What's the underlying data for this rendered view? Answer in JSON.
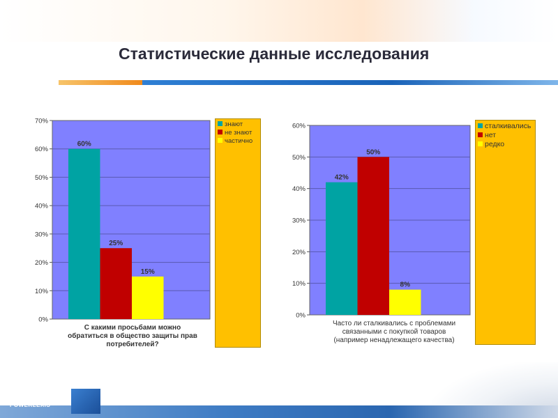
{
  "slide": {
    "title": "Статистические данные исследования",
    "brand": "POWERLEXIS"
  },
  "colors": {
    "plot_bg": "#8080ff",
    "teal": "#00a3a3",
    "red": "#c00000",
    "yellow": "#ffff00",
    "legend_bg": "#ffc000",
    "accent_orange": "#f08a1c",
    "accent_blue": "#1a63b8"
  },
  "chart_data": [
    {
      "type": "bar",
      "xlabel_lines": [
        "С какими просьбами можно",
        "обратиться в общество защиты прав",
        "потребителей?"
      ],
      "ylim": [
        0,
        70
      ],
      "yticks": [
        "0%",
        "10%",
        "20%",
        "30%",
        "40%",
        "50%",
        "60%",
        "70%"
      ],
      "ytick_values": [
        0,
        10,
        20,
        30,
        40,
        50,
        60,
        70
      ],
      "series": [
        {
          "name": "знают",
          "value": 60,
          "label": "60%",
          "color": "#00a3a3"
        },
        {
          "name": "не знают",
          "value": 25,
          "label": "25%",
          "color": "#c00000"
        },
        {
          "name": "частично",
          "value": 15,
          "label": "15%",
          "color": "#ffff00"
        }
      ],
      "legend": "right",
      "grid": true
    },
    {
      "type": "bar",
      "xlabel_lines": [
        "Часто ли сталкивались с проблемами",
        "связанными с покупкой товаров",
        "(например ненадлежащего качества)"
      ],
      "ylim": [
        0,
        60
      ],
      "yticks": [
        "0%",
        "10%",
        "20%",
        "30%",
        "40%",
        "50%",
        "60%"
      ],
      "ytick_values": [
        0,
        10,
        20,
        30,
        40,
        50,
        60
      ],
      "series": [
        {
          "name": "сталкивались",
          "value": 42,
          "label": "42%",
          "color": "#00a3a3"
        },
        {
          "name": "нет",
          "value": 50,
          "label": "50%",
          "color": "#c00000"
        },
        {
          "name": "редко",
          "value": 8,
          "label": "8%",
          "color": "#ffff00"
        }
      ],
      "legend": "right",
      "grid": true
    }
  ]
}
